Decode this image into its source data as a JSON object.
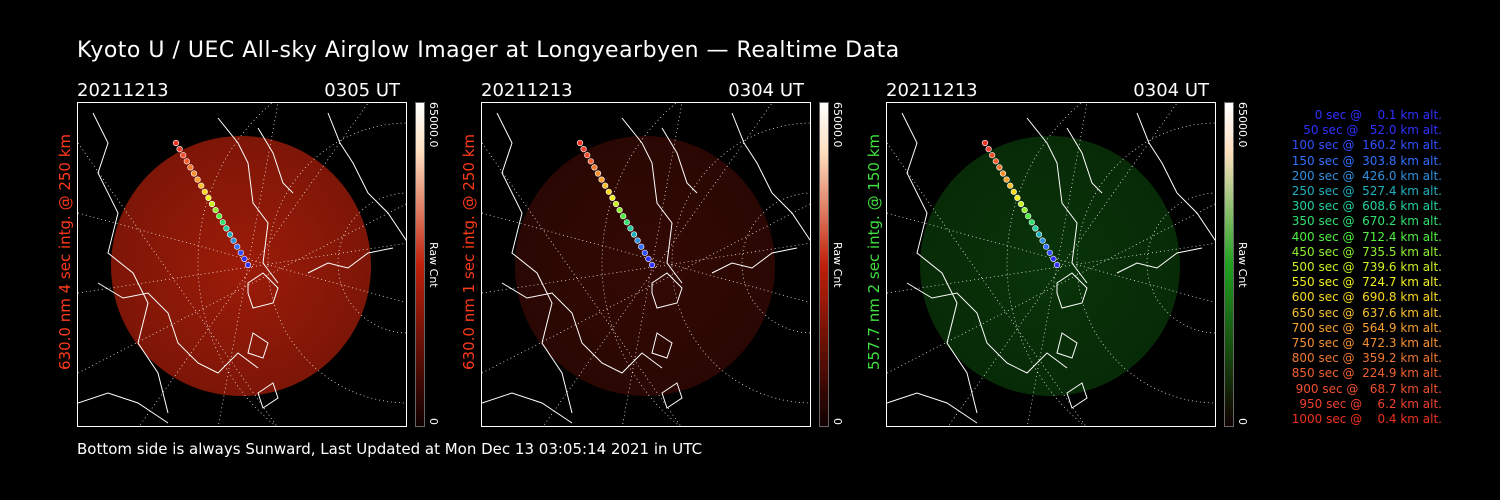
{
  "title": "Kyoto U / UEC All-sky Airglow Imager at Longyearbyen — Realtime Data",
  "footer": "Bottom side is always Sunward, Last Updated at Mon Dec 13 03:05:14 2021 in UTC",
  "panels": [
    {
      "date": "20211213",
      "time": "0305 UT",
      "label": "630.0 nm 4 sec intg. @ 250 km",
      "label_color": "#ff3a1a",
      "glow_color": "#b8200a",
      "glow_opacity": 0.85,
      "cbar_top": "65000.0",
      "cbar_mid": "Raw Cnt",
      "cbar_bottom": "0",
      "cbar_color": "#c0200a"
    },
    {
      "date": "20211213",
      "time": "0304 UT",
      "label": "630.0 nm 1 sec intg. @ 250 km",
      "label_color": "#ff3a1a",
      "glow_color": "#3a0a04",
      "glow_opacity": 0.9,
      "cbar_top": "65000.0",
      "cbar_mid": "Raw Cnt",
      "cbar_bottom": "0",
      "cbar_color": "#c0200a"
    },
    {
      "date": "20211213",
      "time": "0304 UT",
      "label": "557.7 nm 2 sec intg. @ 150 km",
      "label_color": "#40e040",
      "glow_color": "#0a3a0a",
      "glow_opacity": 0.9,
      "cbar_top": "65000.0",
      "cbar_mid": "Raw Cnt",
      "cbar_bottom": "0",
      "cbar_color": "#20a020"
    }
  ],
  "legend": [
    {
      "text": "0 sec @    0.1 km alt.",
      "color": "#3030ff"
    },
    {
      "text": "50 sec @   52.0 km alt.",
      "color": "#3030ff"
    },
    {
      "text": "100 sec @  160.2 km alt.",
      "color": "#3050ff"
    },
    {
      "text": "150 sec @  303.8 km alt.",
      "color": "#3070ff"
    },
    {
      "text": "200 sec @  426.0 km alt.",
      "color": "#3090e0"
    },
    {
      "text": "250 sec @  527.4 km alt.",
      "color": "#20b0c0"
    },
    {
      "text": "300 sec @  608.6 km alt.",
      "color": "#20d0a0"
    },
    {
      "text": "350 sec @  670.2 km alt.",
      "color": "#30e070"
    },
    {
      "text": "400 sec @  712.4 km alt.",
      "color": "#50f040"
    },
    {
      "text": "450 sec @  735.5 km alt.",
      "color": "#90f030"
    },
    {
      "text": "500 sec @  739.6 km alt.",
      "color": "#c8f020"
    },
    {
      "text": "550 sec @  724.7 km alt.",
      "color": "#f0f020"
    },
    {
      "text": "600 sec @  690.8 km alt.",
      "color": "#f8d820"
    },
    {
      "text": "650 sec @  637.6 km alt.",
      "color": "#f8c030"
    },
    {
      "text": "700 sec @  564.9 km alt.",
      "color": "#f8a030"
    },
    {
      "text": "750 sec @  472.3 km alt.",
      "color": "#f89030"
    },
    {
      "text": "800 sec @  359.2 km alt.",
      "color": "#f07830"
    },
    {
      "text": "850 sec @  224.9 km alt.",
      "color": "#f06030"
    },
    {
      "text": "900 sec @   68.7 km alt.",
      "color": "#f05030"
    },
    {
      "text": "950 sec @    6.2 km alt.",
      "color": "#f04030"
    },
    {
      "text": "1000 sec @    0.4 km alt.",
      "color": "#f03020"
    }
  ]
}
